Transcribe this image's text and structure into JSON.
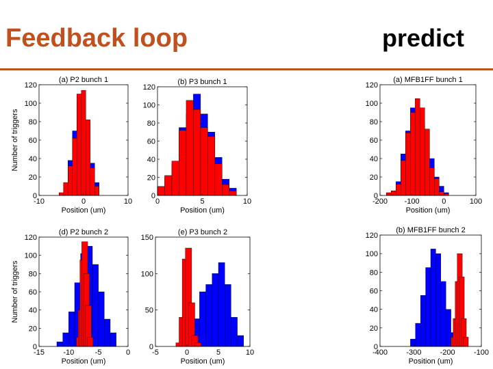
{
  "slide": {
    "title_left": "Feedback loop",
    "title_right": "predict",
    "accent_color": "#c0501e"
  },
  "chart_data": [
    {
      "type": "bar",
      "title": "(a) P2 bunch 1",
      "xlabel": "Position (um)",
      "ylabel": "Number of triggers",
      "xlim": [
        -10,
        10
      ],
      "ylim": [
        0,
        120
      ],
      "xticks": [
        -10,
        0,
        10
      ],
      "yticks": [
        0,
        20,
        40,
        60,
        80,
        100,
        120
      ],
      "bin_width": 1,
      "series": [
        {
          "color": "#0000ff",
          "x": [
            -5,
            -4,
            -3,
            -2,
            -1,
            0,
            1,
            2,
            3
          ],
          "values": [
            2,
            12,
            38,
            70,
            102,
            110,
            78,
            35,
            14
          ]
        },
        {
          "color": "#ff0000",
          "x": [
            -5,
            -4,
            -3,
            -2,
            -1,
            0,
            1,
            2,
            3
          ],
          "values": [
            3,
            14,
            32,
            62,
            110,
            114,
            82,
            30,
            10
          ]
        }
      ]
    },
    {
      "type": "bar",
      "title": "(b) P3 bunch 1",
      "xlabel": "Position (um)",
      "ylabel": "",
      "xlim": [
        0,
        10
      ],
      "ylim": [
        0,
        120
      ],
      "xticks": [
        0,
        5,
        10
      ],
      "yticks": [
        0,
        20,
        40,
        60,
        80,
        100,
        120
      ],
      "bin_width": 0.8,
      "series": [
        {
          "color": "#0000ff",
          "x": [
            0.4,
            1.2,
            2.0,
            2.8,
            3.6,
            4.4,
            5.2,
            6.0,
            6.8,
            7.6,
            8.4
          ],
          "values": [
            8,
            20,
            35,
            75,
            90,
            112,
            90,
            70,
            42,
            18,
            8
          ]
        },
        {
          "color": "#ff0000",
          "x": [
            0.4,
            1.2,
            2.0,
            2.8,
            3.6,
            4.4,
            5.2,
            6.0,
            6.8,
            7.6,
            8.4
          ],
          "values": [
            10,
            22,
            38,
            72,
            105,
            95,
            75,
            65,
            35,
            12,
            5
          ]
        }
      ]
    },
    {
      "type": "bar",
      "title": "(a) MFB1FF bunch 1",
      "xlabel": "Position (um)",
      "ylabel": "",
      "xlim": [
        -200,
        100
      ],
      "ylim": [
        0,
        120
      ],
      "xticks": [
        -200,
        -100,
        0,
        100
      ],
      "yticks": [
        0,
        20,
        40,
        60,
        80,
        100,
        120
      ],
      "bin_width": 15,
      "series": [
        {
          "color": "#0000ff",
          "x": [
            -172.5,
            -157.5,
            -142.5,
            -127.5,
            -112.5,
            -97.5,
            -82.5,
            -67.5,
            -52.5,
            -37.5,
            -22.5,
            -7.5,
            7.5
          ],
          "values": [
            2,
            5,
            15,
            45,
            70,
            95,
            92,
            78,
            70,
            40,
            20,
            10,
            3
          ]
        },
        {
          "color": "#ff0000",
          "x": [
            -172.5,
            -157.5,
            -142.5,
            -127.5,
            -112.5,
            -97.5,
            -82.5,
            -67.5,
            -52.5,
            -37.5,
            -22.5,
            -7.5,
            7.5
          ],
          "values": [
            3,
            5,
            12,
            38,
            68,
            90,
            105,
            95,
            72,
            30,
            18,
            4,
            2
          ]
        }
      ]
    },
    {
      "type": "bar",
      "title": "(d) P2 bunch 2",
      "xlabel": "Position (um)",
      "ylabel": "Number of triggers",
      "xlim": [
        -15,
        0
      ],
      "ylim": [
        0,
        120
      ],
      "xticks": [
        -15,
        -10,
        -5,
        0
      ],
      "yticks": [
        0,
        20,
        40,
        60,
        80,
        100,
        120
      ],
      "bin_width": 1,
      "series": [
        {
          "color": "#0000ff",
          "x": [
            -11.5,
            -10.5,
            -9.5,
            -8.5,
            -7.5,
            -6.5,
            -5.5,
            -4.5,
            -3.5,
            -2.5
          ],
          "values": [
            5,
            15,
            38,
            70,
            102,
            110,
            90,
            60,
            30,
            15
          ]
        },
        {
          "color": "#ff0000",
          "x": [
            -8.2,
            -7.9,
            -7.6,
            -7.3,
            -7.0,
            -6.7,
            -6.4
          ],
          "values": [
            10,
            40,
            95,
            115,
            80,
            45,
            10
          ]
        }
      ]
    },
    {
      "type": "bar",
      "title": "(e) P3 bunch 2",
      "xlabel": "Position (um)",
      "ylabel": "",
      "xlim": [
        -5,
        10
      ],
      "ylim": [
        0,
        150
      ],
      "xticks": [
        -5,
        0,
        5,
        10
      ],
      "yticks": [
        0,
        50,
        100,
        150
      ],
      "bin_width": 1,
      "series": [
        {
          "color": "#0000ff",
          "x": [
            1.5,
            2.5,
            3.5,
            4.5,
            5.5,
            6.5,
            7.5,
            8.5
          ],
          "values": [
            38,
            75,
            85,
            100,
            115,
            85,
            40,
            15
          ]
        },
        {
          "color": "#ff0000",
          "x": [
            -1.25,
            -0.75,
            -0.25,
            0.25,
            0.75,
            1.25,
            1.75
          ],
          "values": [
            5,
            40,
            120,
            135,
            60,
            15,
            5
          ]
        }
      ]
    },
    {
      "type": "bar",
      "title": "(b) MFB1FF bunch 2",
      "xlabel": "Position (um)",
      "ylabel": "",
      "xlim": [
        -400,
        -100
      ],
      "ylim": [
        0,
        120
      ],
      "xticks": [
        -400,
        -300,
        -200,
        -100
      ],
      "yticks": [
        0,
        20,
        40,
        60,
        80,
        100,
        120
      ],
      "bin_width": 15,
      "series": [
        {
          "color": "#0000ff",
          "x": [
            -302.5,
            -287.5,
            -272.5,
            -257.5,
            -242.5,
            -227.5,
            -212.5,
            -197.5,
            -182.5,
            -167.5
          ],
          "values": [
            8,
            25,
            55,
            85,
            105,
            100,
            70,
            40,
            15,
            5
          ]
        },
        {
          "color": "#ff0000",
          "x": [
            -182,
            -176,
            -170,
            -164,
            -158,
            -152,
            -146
          ],
          "values": [
            10,
            30,
            70,
            100,
            75,
            30,
            10
          ]
        }
      ]
    }
  ]
}
